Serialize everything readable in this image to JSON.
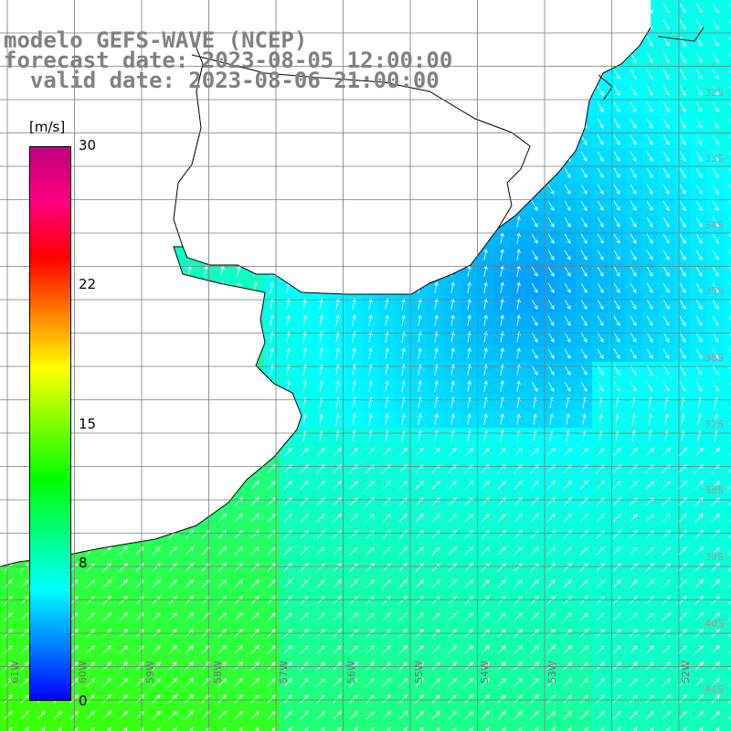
{
  "title": {
    "line1": "modelo GEFS-WAVE (NCEP)",
    "line2": "forecast date: 2023-08-05 12:00:00",
    "line3": "  valid date: 2023-08-06 21:00:00"
  },
  "colorbar": {
    "unit": "[m/s]",
    "ticks": [
      "30",
      "22",
      "15",
      "8",
      "0"
    ],
    "colors": [
      "#0000ff",
      "#0080ff",
      "#00ffff",
      "#00ff80",
      "#00ff00",
      "#80ff00",
      "#ffff00",
      "#ff8000",
      "#ff0000",
      "#ff0080",
      "#c00080"
    ]
  },
  "lat_labels": [
    "32S",
    "33S",
    "34S",
    "35S",
    "36S",
    "37S",
    "38S",
    "39S",
    "40S",
    "41S"
  ],
  "lon_labels": [
    "61W",
    "60W",
    "59W",
    "58W",
    "57W",
    "56W",
    "55W",
    "54W",
    "53W",
    "52W"
  ],
  "colors": {
    "land": "#ffffff",
    "coast": "#000000",
    "grid": "#7a7a7a",
    "arrow": "#ffffff"
  }
}
